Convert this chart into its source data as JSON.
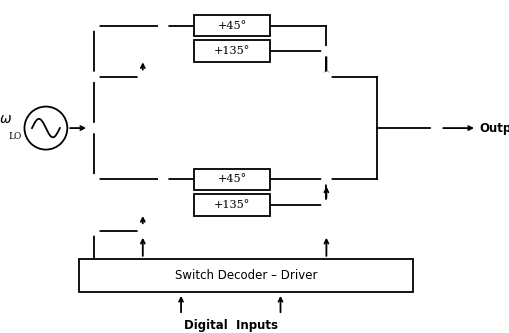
{
  "background_color": "#ffffff",
  "line_color": "#000000",
  "box_labels": [
    "+45°",
    "+135°",
    "+45°",
    "+135°"
  ],
  "switch_decoder_label": "Switch Decoder – Driver",
  "digital_inputs_label": "Digital  Inputs",
  "output_label": "Output",
  "omega_label": "ω",
  "lo_subscript": "LO",
  "figsize": [
    5.1,
    3.33
  ],
  "dpi": 100,
  "lw": 1.3,
  "cr": 0.085
}
